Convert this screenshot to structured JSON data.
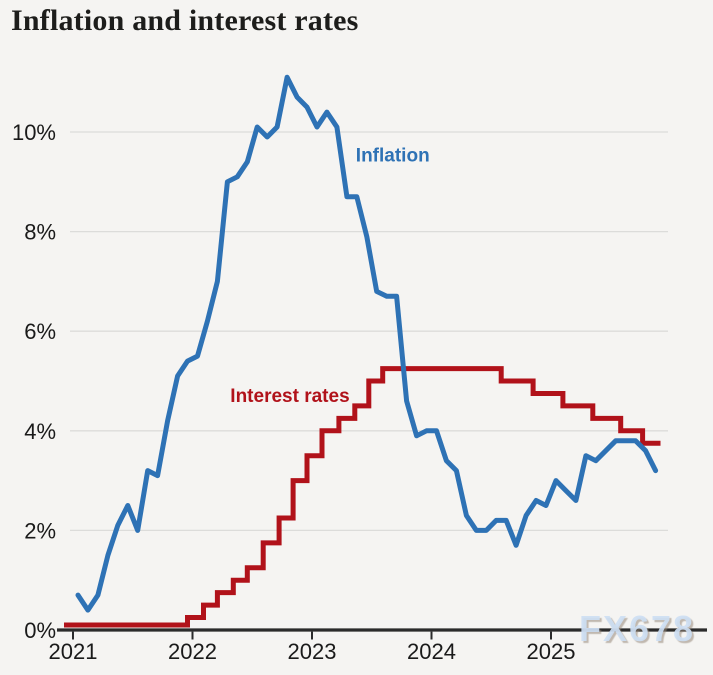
{
  "title": "Inflation and interest rates",
  "watermark": "FX678",
  "colors": {
    "background": "#f5f4f2",
    "title_text": "#1d1d1b",
    "axis_text": "#1a1a1a",
    "grid_line": "#dcdcda",
    "axis_line": "#2b2b2b",
    "inflation_blue": "#2e72b5",
    "rates_red": "#b1121a",
    "watermark_blue": "#cddef3"
  },
  "chart_data": {
    "type": "line",
    "title": "Inflation and interest rates",
    "grid": "horizontal-only",
    "legend": "inline-labels",
    "month_index_note": "m = months since Jan 2021 (0 = Jan 2021)",
    "x_axis": {
      "tick_labels": [
        "2021",
        "2022",
        "2023",
        "2024",
        "2025"
      ],
      "tick_months": [
        0,
        12,
        24,
        36,
        48
      ],
      "range_months": [
        -1,
        59
      ]
    },
    "y_axis": {
      "tick_labels": [
        "0%",
        "2%",
        "4%",
        "6%",
        "8%",
        "10%"
      ],
      "tick_values": [
        0,
        2,
        4,
        6,
        8,
        10
      ],
      "ylim": [
        0,
        11.5
      ],
      "unit": "%"
    },
    "series": [
      {
        "name": "Interest rates",
        "style": "step",
        "color": "#b1121a",
        "end_month": 59.0,
        "steps": [
          [
            -0.9,
            0.1
          ],
          [
            11.5,
            0.25
          ],
          [
            13.1,
            0.5
          ],
          [
            14.5,
            0.75
          ],
          [
            16.1,
            1.0
          ],
          [
            17.5,
            1.25
          ],
          [
            19.1,
            1.75
          ],
          [
            20.7,
            2.25
          ],
          [
            22.1,
            3.0
          ],
          [
            23.5,
            3.5
          ],
          [
            25.0,
            4.0
          ],
          [
            26.7,
            4.25
          ],
          [
            28.3,
            4.5
          ],
          [
            29.7,
            5.0
          ],
          [
            31.1,
            5.25
          ],
          [
            43.0,
            5.0
          ],
          [
            46.2,
            4.75
          ],
          [
            49.2,
            4.5
          ],
          [
            52.2,
            4.25
          ],
          [
            55.0,
            4.0
          ],
          [
            57.2,
            3.75
          ]
        ]
      },
      {
        "name": "Inflation",
        "style": "line",
        "color": "#2e72b5",
        "start_month": 0,
        "values": [
          0.7,
          0.4,
          0.7,
          1.5,
          2.1,
          2.5,
          2.0,
          3.2,
          3.1,
          4.2,
          5.1,
          5.4,
          5.5,
          6.2,
          7.0,
          9.0,
          9.1,
          9.4,
          10.1,
          9.9,
          10.1,
          11.1,
          10.7,
          10.5,
          10.1,
          10.4,
          10.1,
          8.7,
          8.7,
          7.9,
          6.8,
          6.7,
          6.7,
          4.6,
          3.9,
          4.0,
          4.0,
          3.4,
          3.2,
          2.3,
          2.0,
          2.0,
          2.2,
          2.2,
          1.7,
          2.3,
          2.6,
          2.5,
          3.0,
          2.8,
          2.6,
          3.5,
          3.4,
          3.6,
          3.8,
          3.8,
          3.8,
          3.6,
          3.2
        ]
      }
    ],
    "annotations": [
      {
        "text": "Inflation",
        "color": "#2e72b5",
        "m": 28.4,
        "v": 9.55
      },
      {
        "text": "Interest rates",
        "color": "#b1121a",
        "m": 15.8,
        "v": 4.72
      }
    ]
  }
}
